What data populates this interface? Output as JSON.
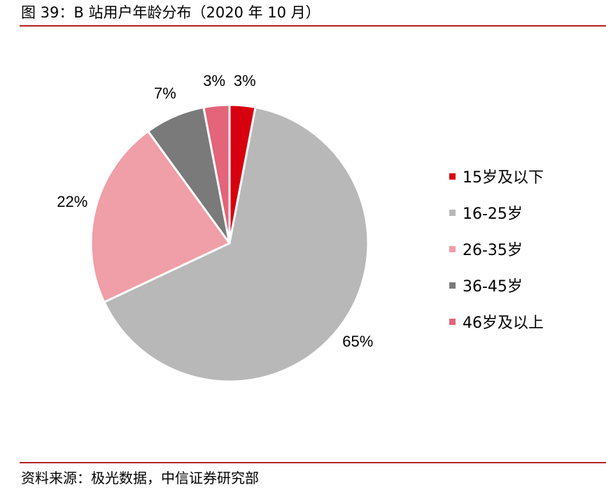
{
  "title": "图 39：B 站用户年龄分布（2020 年 10 月）",
  "source": "资料来源：极光数据，中信证券研究部",
  "chart_data": {
    "type": "pie",
    "title": "图 39：B 站用户年龄分布（2020 年 10 月）",
    "legend_position": "right",
    "categories": [
      "15岁及以下",
      "16-25岁",
      "26-35岁",
      "36-45岁",
      "46岁及以上"
    ],
    "values": [
      3,
      65,
      22,
      7,
      3
    ],
    "labels": [
      "3%",
      "65%",
      "22%",
      "7%",
      "3%"
    ],
    "colors": [
      "#d7000f",
      "#b8b8b8",
      "#f09ea7",
      "#7a7a7a",
      "#e4647a"
    ]
  }
}
